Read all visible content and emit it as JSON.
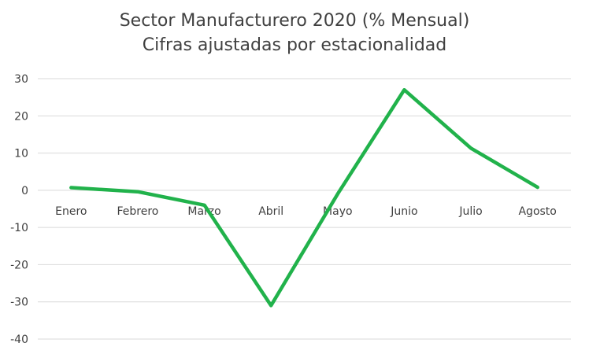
{
  "chart_data": {
    "type": "line",
    "title": "Sector Manufacturero 2020 (% Mensual)",
    "subtitle": "Cifras ajustadas por estacionalidad",
    "categories": [
      "Enero",
      "Febrero",
      "Marzo",
      "Abril",
      "Mayo",
      "Junio",
      "Julio",
      "Agosto"
    ],
    "series": [
      {
        "values": [
          0.7,
          -0.4,
          -4.0,
          -31.0,
          -1.0,
          27.0,
          11.3,
          0.8
        ]
      }
    ],
    "yticks": [
      30,
      20,
      10,
      0,
      -10,
      -20,
      -30,
      -40
    ],
    "ylim": [
      -40,
      30
    ],
    "grid": true,
    "legend": "none",
    "colors": {
      "line": "#21B24B",
      "grid": "#D9D9D9",
      "text": "#404040"
    }
  }
}
